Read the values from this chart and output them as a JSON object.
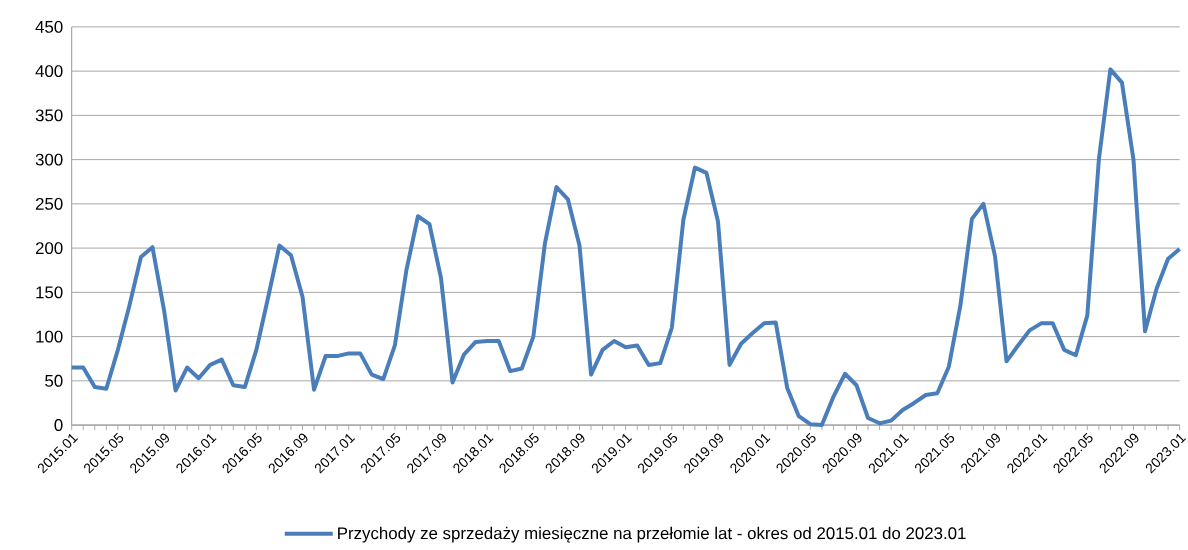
{
  "chart_data": {
    "type": "line",
    "categories": [
      "2015.01",
      null,
      null,
      null,
      "2015.05",
      null,
      null,
      null,
      "2015.09",
      null,
      null,
      null,
      "2016.01",
      null,
      null,
      null,
      "2016.05",
      null,
      null,
      null,
      "2016.09",
      null,
      null,
      null,
      "2017.01",
      null,
      null,
      null,
      "2017.05",
      null,
      null,
      null,
      "2017.09",
      null,
      null,
      null,
      "2018.01",
      null,
      null,
      null,
      "2018.05",
      null,
      null,
      null,
      "2018.09",
      null,
      null,
      null,
      "2019.01",
      null,
      null,
      null,
      "2019.05",
      null,
      null,
      null,
      "2019.09",
      null,
      null,
      null,
      "2020.01",
      null,
      null,
      null,
      "2020.05",
      null,
      null,
      null,
      "2020.09",
      null,
      null,
      null,
      "2021.01",
      null,
      null,
      null,
      "2021.05",
      null,
      null,
      null,
      "2021.09",
      null,
      null,
      null,
      "2022.01",
      null,
      null,
      null,
      "2022.05",
      null,
      null,
      null,
      "2022.09",
      null,
      null,
      null,
      "2023.01"
    ],
    "series": [
      {
        "name": "Przychody ze sprzedaży miesięczne na przełomie lat - okres od 2015.01 do 2023.01",
        "color": "#4a7ebb",
        "values": [
          65,
          65,
          43,
          41,
          85,
          135,
          190,
          201,
          130,
          39,
          65,
          53,
          68,
          74,
          45,
          43,
          85,
          143,
          203,
          192,
          145,
          40,
          78,
          78,
          81,
          81,
          57,
          52,
          90,
          175,
          236,
          227,
          166,
          48,
          80,
          94,
          95,
          95,
          61,
          64,
          100,
          205,
          269,
          255,
          203,
          57,
          85,
          95,
          88,
          90,
          68,
          70,
          110,
          232,
          291,
          285,
          230,
          68,
          92,
          104,
          115,
          116,
          42,
          10,
          1,
          0,
          32,
          58,
          45,
          8,
          2,
          5,
          17,
          25,
          34,
          36,
          66,
          135,
          233,
          250,
          191,
          72,
          90,
          107,
          115,
          115,
          85,
          79,
          124,
          300,
          402,
          387,
          300,
          106,
          154,
          188,
          199
        ]
      }
    ],
    "ylim": [
      0,
      450
    ],
    "yticks": [
      0,
      50,
      100,
      150,
      200,
      250,
      300,
      350,
      400,
      450
    ],
    "grid": "y",
    "legend": "bottom",
    "line_style": "solid"
  }
}
